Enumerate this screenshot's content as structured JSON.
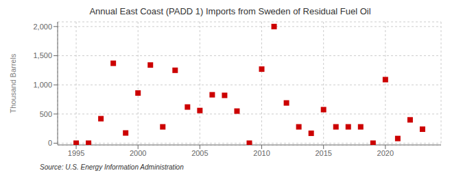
{
  "chart_data": {
    "type": "scatter",
    "title": "Annual East Coast (PADD 1) Imports from Sweden of Residual Fuel Oil",
    "ylabel": "Thousand Barrels",
    "annotation": "Source: U.S. Energy Information Administration",
    "x": [
      1995,
      1996,
      1997,
      1998,
      1999,
      2000,
      2001,
      2002,
      2003,
      2004,
      2005,
      2006,
      2007,
      2008,
      2009,
      2010,
      2011,
      2012,
      2013,
      2014,
      2015,
      2016,
      2017,
      2018,
      2019,
      2020,
      2021,
      2022,
      2023
    ],
    "values": [
      0,
      0,
      420,
      1370,
      175,
      860,
      1340,
      280,
      1250,
      620,
      560,
      830,
      820,
      550,
      0,
      1270,
      2000,
      690,
      280,
      170,
      575,
      280,
      280,
      280,
      0,
      1090,
      80,
      400,
      240
    ],
    "color": "#cc0000",
    "marker": "square",
    "xlim": [
      1993.5,
      2024.5
    ],
    "ylim": [
      -30,
      2080
    ],
    "xticks": [
      1995,
      2000,
      2005,
      2010,
      2015,
      2020
    ],
    "yticks": [
      0,
      500,
      {
        "value": 1000,
        "label": "1,000"
      },
      {
        "value": 1500,
        "label": "1,500"
      },
      {
        "value": 2000,
        "label": "2,000"
      }
    ],
    "grid": true
  }
}
